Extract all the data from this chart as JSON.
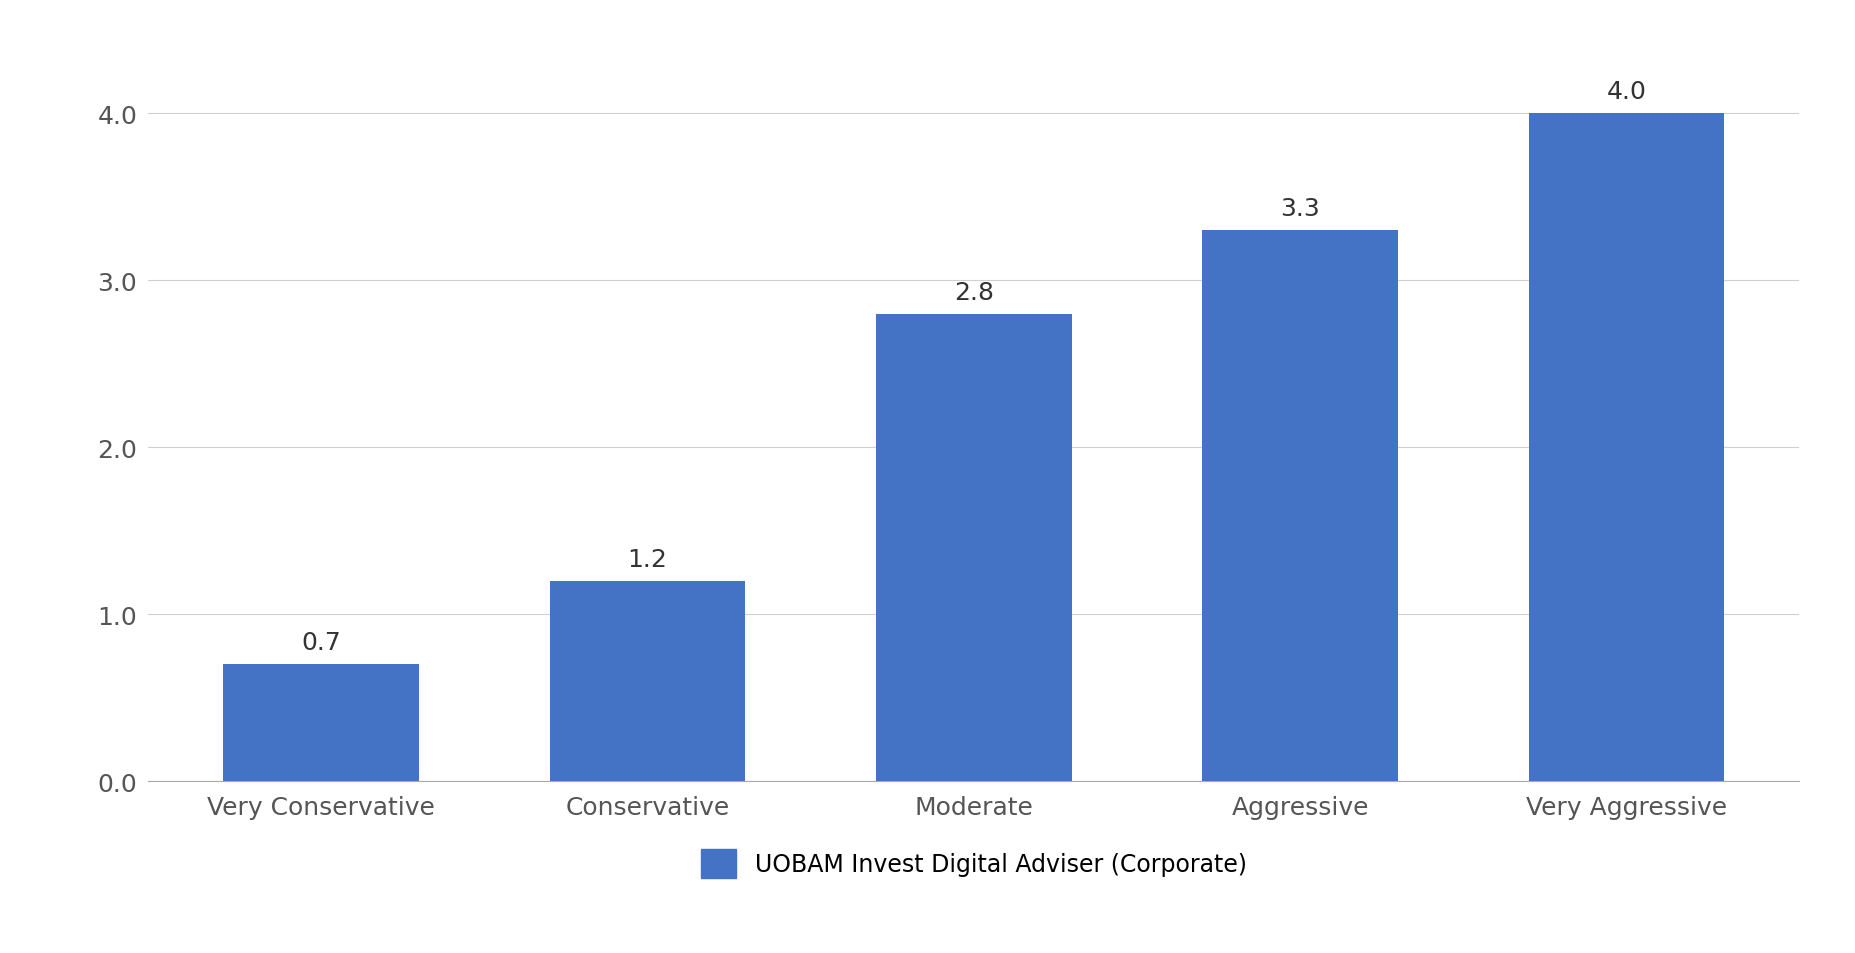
{
  "categories": [
    "Very Conservative",
    "Conservative",
    "Moderate",
    "Aggressive",
    "Very Aggressive"
  ],
  "values": [
    0.7,
    1.2,
    2.8,
    3.3,
    4.0
  ],
  "bar_color": "#4472C4",
  "ylim": [
    0,
    4.4
  ],
  "yticks": [
    0.0,
    1.0,
    2.0,
    3.0,
    4.0
  ],
  "ytick_labels": [
    "0.0",
    "1.0",
    "2.0",
    "3.0",
    "4.0"
  ],
  "legend_label": "UOBAM Invest Digital Adviser (Corporate)",
  "background_color": "#ffffff",
  "bar_width": 0.6,
  "tick_fontsize": 18,
  "legend_fontsize": 17,
  "value_fontsize": 18,
  "grid_color": "#d0d0d0",
  "spine_color": "#aaaaaa"
}
